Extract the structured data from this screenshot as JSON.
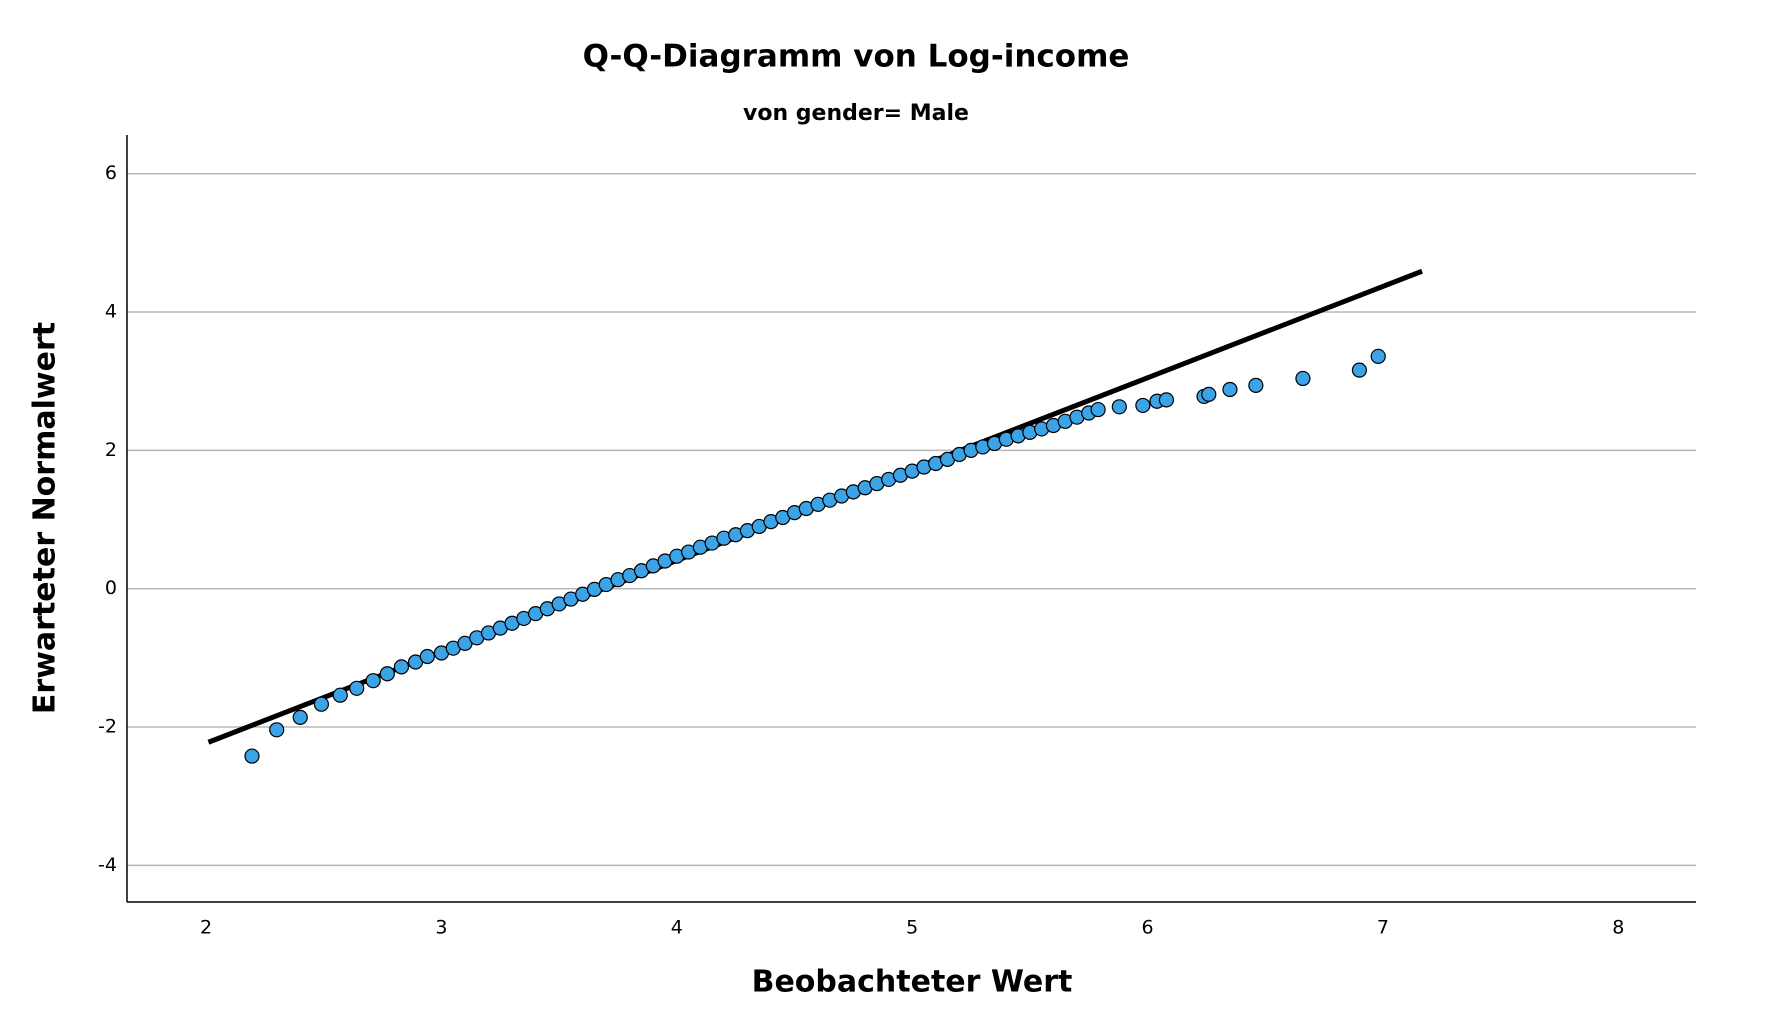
{
  "chart_data": {
    "type": "scatter",
    "title": "Q-Q-Diagramm von Log-income",
    "subtitle": "von gender= Male",
    "x_label": "Beobachteter Wert",
    "y_label": "Erwarteter Normalwert",
    "xlim": [
      1.664,
      8.33
    ],
    "ylim": [
      -4.53,
      6.56
    ],
    "xticks": [
      2,
      3,
      4,
      5,
      6,
      7,
      8
    ],
    "yticks": [
      -4,
      -2,
      0,
      2,
      4,
      6
    ],
    "grid": true,
    "reference_line": {
      "color": "#000000",
      "x": [
        2.01,
        7.166
      ],
      "y": [
        -2.22,
        4.59
      ]
    },
    "series": [
      {
        "color": "#3ba3e6",
        "x": [
          2.195,
          2.3,
          2.4,
          2.49,
          2.57,
          2.64,
          2.71,
          2.77,
          2.83,
          2.89,
          2.94,
          3.0,
          3.05,
          3.1,
          3.15,
          3.2,
          3.25,
          3.3,
          3.35,
          3.4,
          3.45,
          3.5,
          3.55,
          3.6,
          3.65,
          3.7,
          3.75,
          3.8,
          3.85,
          3.9,
          3.95,
          4.0,
          4.05,
          4.1,
          4.15,
          4.2,
          4.25,
          4.3,
          4.35,
          4.4,
          4.45,
          4.5,
          4.55,
          4.6,
          4.65,
          4.7,
          4.75,
          4.8,
          4.85,
          4.9,
          4.95,
          5.0,
          5.05,
          5.1,
          5.15,
          5.2,
          5.25,
          5.3,
          5.35,
          5.4,
          5.45,
          5.5,
          5.55,
          5.6,
          5.65,
          5.7,
          5.75,
          5.79,
          5.88,
          5.98,
          6.04,
          6.08,
          6.24,
          6.26,
          6.35,
          6.46,
          6.66,
          6.9,
          6.98
        ],
        "values": [
          -2.42,
          -2.04,
          -1.86,
          -1.67,
          -1.54,
          -1.44,
          -1.33,
          -1.23,
          -1.13,
          -1.06,
          -0.98,
          -0.93,
          -0.86,
          -0.79,
          -0.71,
          -0.64,
          -0.57,
          -0.5,
          -0.43,
          -0.36,
          -0.29,
          -0.22,
          -0.15,
          -0.08,
          -0.01,
          0.06,
          0.13,
          0.19,
          0.26,
          0.33,
          0.4,
          0.47,
          0.53,
          0.6,
          0.66,
          0.73,
          0.78,
          0.84,
          0.9,
          0.97,
          1.03,
          1.1,
          1.16,
          1.22,
          1.28,
          1.34,
          1.4,
          1.46,
          1.52,
          1.58,
          1.64,
          1.7,
          1.76,
          1.81,
          1.87,
          1.94,
          2.0,
          2.05,
          2.1,
          2.16,
          2.21,
          2.26,
          2.31,
          2.36,
          2.42,
          2.48,
          2.54,
          2.59,
          2.63,
          2.65,
          2.71,
          2.73,
          2.78,
          2.81,
          2.88,
          2.94,
          3.04,
          3.16,
          3.36
        ]
      }
    ]
  }
}
